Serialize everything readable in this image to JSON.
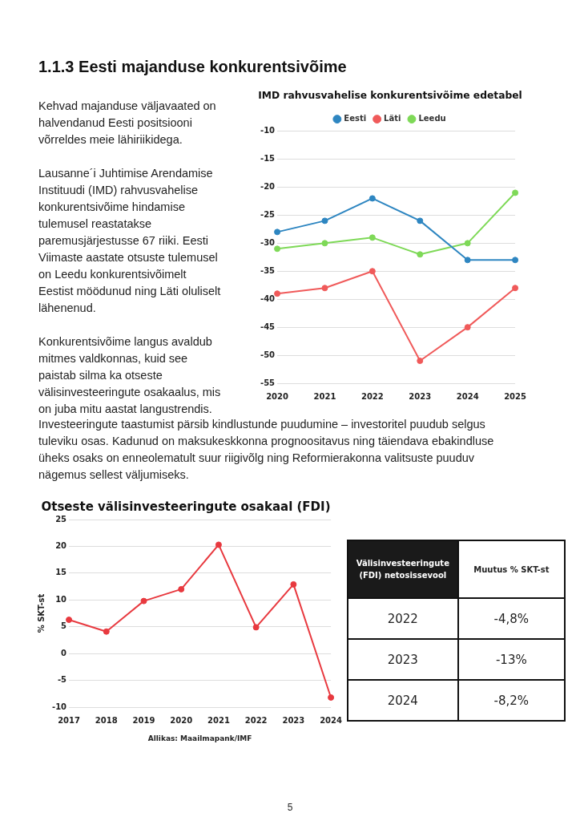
{
  "chart_data": [
    {
      "type": "other",
      "title": "1.1.3 Eesti majanduse konkurentsivõime",
      "annotations": [
        "Kehvad majanduse väljavaated on halvendanud Eesti positsiooni võrreldes meie lähiriikidega.",
        "Lausanne´i Juhtimise Arendamise Instituudi (IMD) rahvusvahelise konkurentsivõime hindamise tulemusel reastatakse paremusjärjestusse 67 riiki. Eesti Viimaste aastate otsuste tulemusel on Leedu konkurentsivõimelt Eestist möödunud ning Läti oluliselt lähenenud.",
        "Konkurentsivõime langus avaldub mitmes valdkonnas, kuid see paistab silma ka otseste välisinvesteeringute osakaalus, mis on juba mitu aastat langustrendis.",
        "Investeeringute taastumist pärsib kindlustunde puudumine – investoritel puudub selgus tuleviku osas. Kadunud on maksukeskkonna prognoositavus ning täiendava ebakindluse üheks osaks on enneolematult suur riigivõlg ning Reformierakonna valitsuste puuduv nägemus sellest väljumiseks.",
        "5"
      ]
    },
    {
      "type": "line",
      "title": "IMD rahvusvahelise konkurentsivõime edetabel",
      "categories": [
        "2020",
        "2021",
        "2022",
        "2023",
        "2024",
        "2025"
      ],
      "series": [
        {
          "name": "Eesti",
          "color": "#2e86c1",
          "values": [
            -28,
            -26,
            -22,
            -26,
            -33,
            -33
          ]
        },
        {
          "name": "Läti",
          "color": "#f05a5a",
          "values": [
            -39,
            -38,
            -35,
            -51,
            -45,
            -38
          ]
        },
        {
          "name": "Leedu",
          "color": "#7ed957",
          "values": [
            -31,
            -30,
            -29,
            -32,
            -30,
            -21
          ]
        }
      ],
      "ylim": [
        -55,
        -10
      ],
      "yticks": [
        -55,
        -50,
        -45,
        -40,
        -35,
        -30,
        -25,
        -20,
        -15,
        -10
      ],
      "grid": "y",
      "legend": "top",
      "marker": "circle",
      "line_style": "solid"
    },
    {
      "type": "line",
      "title": "Otseste välisinvesteeringute osakaal (FDI)",
      "ylabel": "% SKT-st",
      "categories": [
        "2017",
        "2018",
        "2019",
        "2020",
        "2021",
        "2022",
        "2023",
        "2024"
      ],
      "series": [
        {
          "color": "#e8393f",
          "values": [
            6.3,
            4.1,
            9.8,
            12,
            20.3,
            4.9,
            12.9,
            -8.2
          ]
        }
      ],
      "ylim": [
        -10,
        25
      ],
      "yticks": [
        -10,
        -5,
        0,
        5,
        10,
        15,
        20,
        25
      ],
      "grid": "y",
      "legend": false,
      "marker": "circle",
      "line_style": "solid",
      "annotations": [
        "Allikas: Maailmapank/IMF"
      ]
    },
    {
      "type": "other",
      "annotations": [
        "Välisinvesteeringute (FDI) netosissevool",
        "Muutus % SKT-st",
        "2022",
        "-4,8%",
        "2023",
        "-13%",
        "2024",
        "-8,2%"
      ]
    }
  ]
}
